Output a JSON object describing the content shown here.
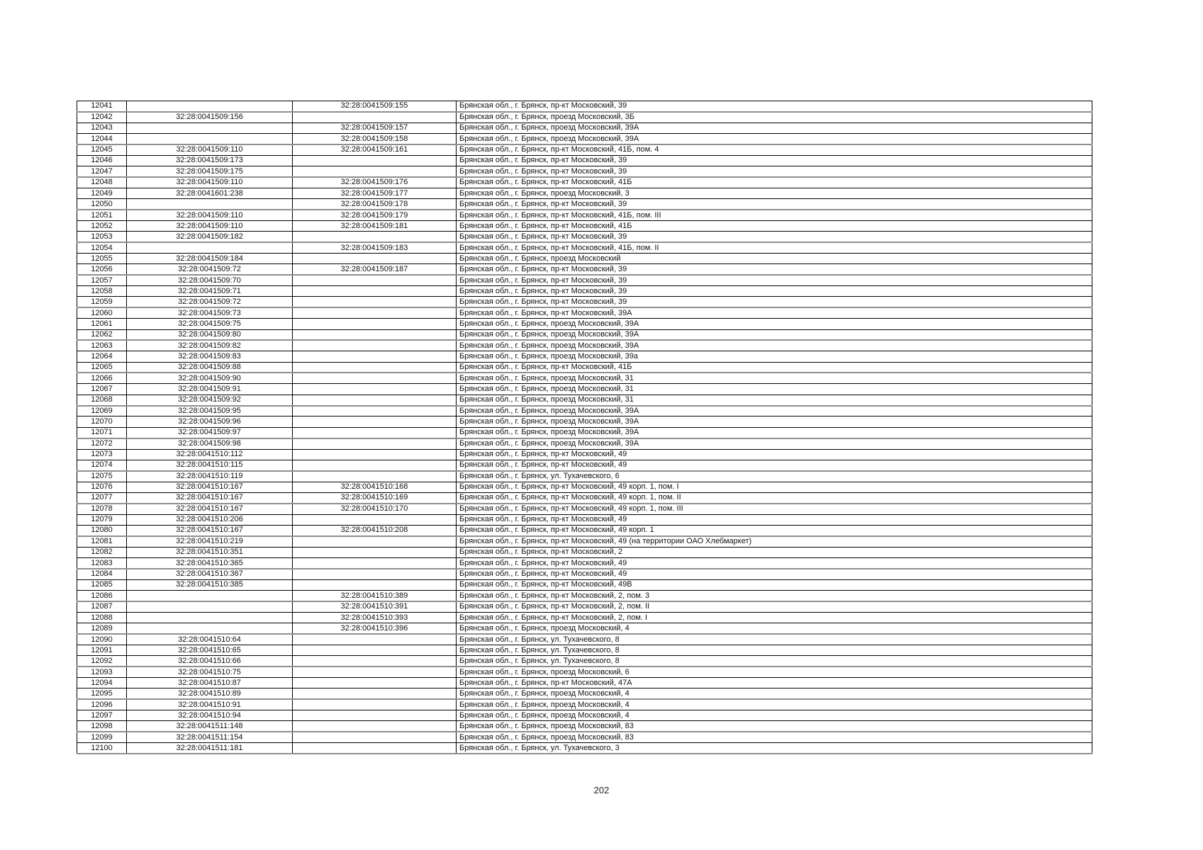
{
  "page": {
    "number": "202"
  },
  "table": {
    "rows": [
      [
        "12041",
        "",
        "32:28:0041509:155",
        "Брянская обл., г. Брянск, пр-кт Московский, 39"
      ],
      [
        "12042",
        "32:28:0041509:156",
        "",
        "Брянская обл., г. Брянск, проезд Московский, 3Б"
      ],
      [
        "12043",
        "",
        "32:28:0041509:157",
        "Брянская обл., г. Брянск, проезд Московский, 39А"
      ],
      [
        "12044",
        "",
        "32:28:0041509:158",
        "Брянская обл., г. Брянск, проезд Московский, 39А"
      ],
      [
        "12045",
        "32:28:0041509:110",
        "32:28:0041509:161",
        "Брянская обл., г. Брянск, пр-кт Московский, 41Б, пом. 4"
      ],
      [
        "12046",
        "32:28:0041509:173",
        "",
        "Брянская обл., г. Брянск, пр-кт Московский, 39"
      ],
      [
        "12047",
        "32:28:0041509:175",
        "",
        "Брянская обл., г. Брянск, пр-кт Московский, 39"
      ],
      [
        "12048",
        "32:28:0041509:110",
        "32:28:0041509:176",
        "Брянская обл., г. Брянск, пр-кт Московский, 41Б"
      ],
      [
        "12049",
        "32:28:0041601:238",
        "32:28:0041509:177",
        "Брянская обл., г. Брянск, проезд Московский, 3"
      ],
      [
        "12050",
        "",
        "32:28:0041509:178",
        "Брянская обл., г. Брянск, пр-кт Московский, 39"
      ],
      [
        "12051",
        "32:28:0041509:110",
        "32:28:0041509:179",
        "Брянская обл., г. Брянск, пр-кт Московский, 41Б, пом. III"
      ],
      [
        "12052",
        "32:28:0041509:110",
        "32:28:0041509:181",
        "Брянская обл., г. Брянск, пр-кт Московский, 41Б"
      ],
      [
        "12053",
        "32:28:0041509:182",
        "",
        "Брянская обл., г. Брянск, пр-кт Московский, 39"
      ],
      [
        "12054",
        "",
        "32:28:0041509:183",
        "Брянская обл., г. Брянск, пр-кт Московский, 41Б, пом. II"
      ],
      [
        "12055",
        "32:28:0041509:184",
        "",
        "Брянская обл., г. Брянск, проезд Московский"
      ],
      [
        "12056",
        "32:28:0041509:72",
        "32:28:0041509:187",
        "Брянская обл., г. Брянск, пр-кт Московский, 39"
      ],
      [
        "12057",
        "32:28:0041509:70",
        "",
        "Брянская обл., г. Брянск, пр-кт Московский, 39"
      ],
      [
        "12058",
        "32:28:0041509:71",
        "",
        "Брянская обл., г. Брянск, пр-кт Московский, 39"
      ],
      [
        "12059",
        "32:28:0041509:72",
        "",
        "Брянская обл., г. Брянск, пр-кт Московский, 39"
      ],
      [
        "12060",
        "32:28:0041509:73",
        "",
        "Брянская обл., г. Брянск, пр-кт Московский, 39А"
      ],
      [
        "12061",
        "32:28:0041509:75",
        "",
        "Брянская обл., г. Брянск, проезд Московский, 39А"
      ],
      [
        "12062",
        "32:28:0041509:80",
        "",
        "Брянская обл., г. Брянск, проезд Московский, 39А"
      ],
      [
        "12063",
        "32:28:0041509:82",
        "",
        "Брянская обл., г. Брянск, проезд Московский, 39А"
      ],
      [
        "12064",
        "32:28:0041509:83",
        "",
        "Брянская обл., г. Брянск, проезд Московский, 39а"
      ],
      [
        "12065",
        "32:28:0041509:88",
        "",
        "Брянская обл., г. Брянск, пр-кт Московский, 41Б"
      ],
      [
        "12066",
        "32:28:0041509:90",
        "",
        "Брянская обл., г. Брянск, проезд Московский, 31"
      ],
      [
        "12067",
        "32:28:0041509:91",
        "",
        "Брянская обл., г. Брянск, проезд Московский, 31"
      ],
      [
        "12068",
        "32:28:0041509:92",
        "",
        "Брянская обл., г. Брянск, проезд Московский, 31"
      ],
      [
        "12069",
        "32:28:0041509:95",
        "",
        "Брянская обл., г. Брянск, проезд Московский, 39А"
      ],
      [
        "12070",
        "32:28:0041509:96",
        "",
        "Брянская обл., г. Брянск, проезд Московский, 39А"
      ],
      [
        "12071",
        "32:28:0041509:97",
        "",
        "Брянская обл., г. Брянск, проезд Московский, 39А"
      ],
      [
        "12072",
        "32:28:0041509:98",
        "",
        "Брянская обл., г. Брянск, проезд Московский, 39А"
      ],
      [
        "12073",
        "32:28:0041510:112",
        "",
        "Брянская обл., г. Брянск, пр-кт Московский, 49"
      ],
      [
        "12074",
        "32:28:0041510:115",
        "",
        "Брянская обл., г. Брянск, пр-кт Московский, 49"
      ],
      [
        "12075",
        "32:28:0041510:119",
        "",
        "Брянская обл., г. Брянск, ул. Тухачевского, 6"
      ],
      [
        "12076",
        "32:28:0041510:167",
        "32:28:0041510:168",
        "Брянская обл., г. Брянск, пр-кт Московский, 49 корп. 1, пом. I"
      ],
      [
        "12077",
        "32:28:0041510:167",
        "32:28:0041510:169",
        "Брянская обл., г. Брянск, пр-кт Московский, 49 корп. 1, пом. II"
      ],
      [
        "12078",
        "32:28:0041510:167",
        "32:28:0041510:170",
        "Брянская обл., г. Брянск, пр-кт Московский, 49 корп. 1, пом. III"
      ],
      [
        "12079",
        "32:28:0041510:206",
        "",
        "Брянская обл., г. Брянск, пр-кт Московский, 49"
      ],
      [
        "12080",
        "32:28:0041510:167",
        "32:28:0041510:208",
        "Брянская обл., г. Брянск, пр-кт Московский, 49 корп. 1"
      ],
      [
        "12081",
        "32:28:0041510:219",
        "",
        "Брянская обл., г. Брянск, пр-кт Московский, 49 (на территории ОАО Хлебмаркет)"
      ],
      [
        "12082",
        "32:28:0041510:351",
        "",
        "Брянская обл., г. Брянск, пр-кт Московский, 2"
      ],
      [
        "12083",
        "32:28:0041510:365",
        "",
        "Брянская обл., г. Брянск, пр-кт Московский, 49"
      ],
      [
        "12084",
        "32:28:0041510:367",
        "",
        "Брянская обл., г. Брянск, пр-кт Московский, 49"
      ],
      [
        "12085",
        "32:28:0041510:385",
        "",
        "Брянская обл., г. Брянск, пр-кт Московский, 49В"
      ],
      [
        "12086",
        "",
        "32:28:0041510:389",
        "Брянская обл., г. Брянск, пр-кт Московский, 2, пом. 3"
      ],
      [
        "12087",
        "",
        "32:28:0041510:391",
        "Брянская обл., г. Брянск, пр-кт Московский, 2, пом. II"
      ],
      [
        "12088",
        "",
        "32:28:0041510:393",
        "Брянская обл., г. Брянск, пр-кт Московский, 2, пом. I"
      ],
      [
        "12089",
        "",
        "32:28:0041510:396",
        "Брянская обл., г. Брянск, проезд Московский, 4"
      ],
      [
        "12090",
        "32:28:0041510:64",
        "",
        "Брянская обл., г. Брянск, ул. Тухачевского, 8"
      ],
      [
        "12091",
        "32:28:0041510:65",
        "",
        "Брянская обл., г. Брянск, ул. Тухачевского, 8"
      ],
      [
        "12092",
        "32:28:0041510:66",
        "",
        "Брянская обл., г. Брянск, ул. Тухачевского, 8"
      ],
      [
        "12093",
        "32:28:0041510:75",
        "",
        "Брянская обл., г. Брянск, проезд Московский, 6"
      ],
      [
        "12094",
        "32:28:0041510:87",
        "",
        "Брянская обл., г. Брянск, пр-кт Московский, 47А"
      ],
      [
        "12095",
        "32:28:0041510:89",
        "",
        "Брянская обл., г. Брянск, проезд Московский, 4"
      ],
      [
        "12096",
        "32:28:0041510:91",
        "",
        "Брянская обл., г. Брянск, проезд Московский, 4"
      ],
      [
        "12097",
        "32:28:0041510:94",
        "",
        "Брянская обл., г. Брянск, проезд Московский, 4"
      ],
      [
        "12098",
        "32:28:0041511:148",
        "",
        "Брянская обл., г. Брянск, проезд Московский, 83"
      ],
      [
        "12099",
        "32:28:0041511:154",
        "",
        "Брянская обл., г. Брянск, проезд Московский, 83"
      ],
      [
        "12100",
        "32:28:0041511:181",
        "",
        "Брянская обл., г. Брянск, ул. Тухачевского, 3"
      ]
    ]
  }
}
